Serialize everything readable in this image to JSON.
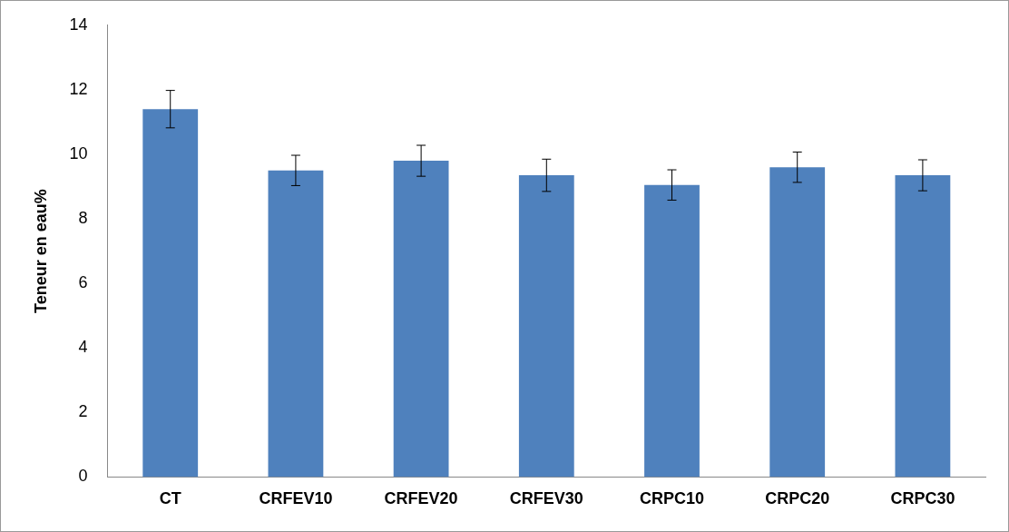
{
  "chart_data": {
    "type": "bar",
    "ylabel": "Teneur en eau%",
    "categories": [
      "CT",
      "CRFEV10",
      "CRFEV20",
      "CRFEV30",
      "CRPC10",
      "CRPC20",
      "CRPC30"
    ],
    "values": [
      11.4,
      9.5,
      9.8,
      9.35,
      9.05,
      9.6,
      9.35
    ],
    "errors": [
      0.58,
      0.47,
      0.48,
      0.5,
      0.47,
      0.47,
      0.48
    ],
    "color": "#4f81bd",
    "ylim": [
      0,
      14
    ],
    "yticks": [
      0,
      2,
      4,
      6,
      8,
      10,
      12,
      14
    ],
    "grid": false,
    "legend": false
  }
}
